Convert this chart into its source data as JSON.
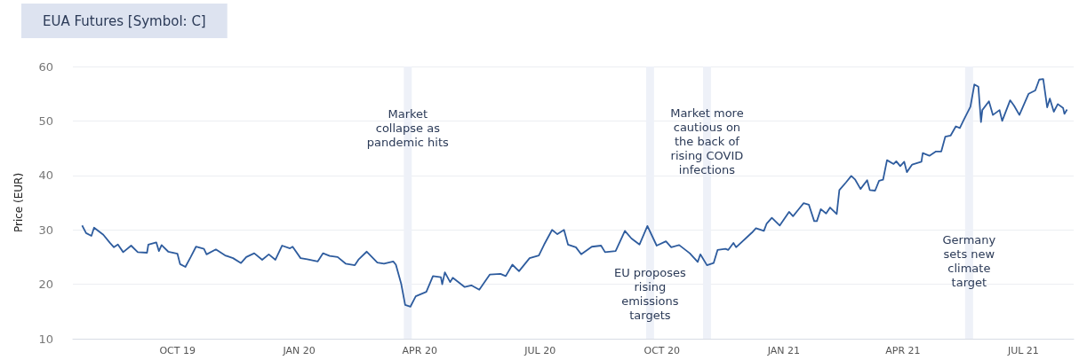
{
  "chart_data": {
    "type": "line",
    "title": "EUA Futures [Symbol: C]",
    "ylabel": "Price (EUR)",
    "x": [
      "2019-07-21",
      "2019-07-24",
      "2019-07-28",
      "2019-07-30",
      "2019-08-06",
      "2019-08-11",
      "2019-08-14",
      "2019-08-17",
      "2019-08-21",
      "2019-08-27",
      "2019-09-01",
      "2019-09-08",
      "2019-09-09",
      "2019-09-15",
      "2019-09-17",
      "2019-09-19",
      "2019-09-24",
      "2019-10-01",
      "2019-10-03",
      "2019-10-07",
      "2019-10-11",
      "2019-10-15",
      "2019-10-21",
      "2019-10-23",
      "2019-10-30",
      "2019-11-06",
      "2019-11-12",
      "2019-11-18",
      "2019-11-22",
      "2019-11-28",
      "2019-12-04",
      "2019-12-09",
      "2019-12-14",
      "2019-12-19",
      "2019-12-25",
      "2019-12-27",
      "2020-01-02",
      "2020-01-07",
      "2020-01-15",
      "2020-01-19",
      "2020-01-24",
      "2020-01-30",
      "2020-02-05",
      "2020-02-12",
      "2020-02-15",
      "2020-02-21",
      "2020-02-29",
      "2020-03-05",
      "2020-03-12",
      "2020-03-14",
      "2020-03-18",
      "2020-03-21",
      "2020-03-25",
      "2020-03-29",
      "2020-04-06",
      "2020-04-11",
      "2020-04-17",
      "2020-04-18",
      "2020-04-20",
      "2020-04-24",
      "2020-04-26",
      "2020-05-05",
      "2020-05-10",
      "2020-05-16",
      "2020-05-24",
      "2020-06-01",
      "2020-06-05",
      "2020-06-10",
      "2020-06-15",
      "2020-06-23",
      "2020-06-30",
      "2020-07-04",
      "2020-07-10",
      "2020-07-14",
      "2020-07-19",
      "2020-07-22",
      "2020-07-28",
      "2020-08-01",
      "2020-08-09",
      "2020-08-16",
      "2020-08-19",
      "2020-08-27",
      "2020-09-03",
      "2020-09-08",
      "2020-09-14",
      "2020-09-20",
      "2020-09-27",
      "2020-10-04",
      "2020-10-08",
      "2020-10-14",
      "2020-10-22",
      "2020-10-28",
      "2020-10-30",
      "2020-11-04",
      "2020-11-09",
      "2020-11-12",
      "2020-11-18",
      "2020-11-20",
      "2020-11-24",
      "2020-11-26",
      "2020-12-08",
      "2020-12-11",
      "2020-12-17",
      "2020-12-19",
      "2020-12-23",
      "2020-12-29",
      "2021-01-05",
      "2021-01-08",
      "2021-01-12",
      "2021-01-16",
      "2021-01-20",
      "2021-01-24",
      "2021-01-26",
      "2021-01-29",
      "2021-02-02",
      "2021-02-05",
      "2021-02-10",
      "2021-02-12",
      "2021-02-17",
      "2021-02-21",
      "2021-02-24",
      "2021-02-28",
      "2021-03-05",
      "2021-03-07",
      "2021-03-11",
      "2021-03-14",
      "2021-03-17",
      "2021-03-20",
      "2021-03-25",
      "2021-03-27",
      "2021-03-30",
      "2021-04-02",
      "2021-04-04",
      "2021-04-08",
      "2021-04-15",
      "2021-04-16",
      "2021-04-21",
      "2021-04-26",
      "2021-04-30",
      "2021-05-03",
      "2021-05-07",
      "2021-05-11",
      "2021-05-14",
      "2021-05-17",
      "2021-05-22",
      "2021-05-25",
      "2021-05-28",
      "2021-05-30",
      "2021-05-31",
      "2021-06-05",
      "2021-06-08",
      "2021-06-13",
      "2021-06-15",
      "2021-06-21",
      "2021-06-24",
      "2021-06-28",
      "2021-07-05",
      "2021-07-10",
      "2021-07-13",
      "2021-07-16",
      "2021-07-19",
      "2021-07-21",
      "2021-07-24",
      "2021-07-27",
      "2021-07-31",
      "2021-08-01",
      "2021-08-03"
    ],
    "series": [
      {
        "color": "#2e5c9e",
        "values": [
          30.8,
          29.4,
          28.9,
          30.4,
          29.1,
          27.6,
          26.8,
          27.3,
          25.9,
          27.1,
          25.9,
          25.8,
          27.3,
          27.7,
          26.1,
          27.2,
          26.0,
          25.6,
          23.7,
          23.2,
          25.0,
          26.9,
          26.5,
          25.5,
          26.4,
          25.3,
          24.8,
          23.9,
          25.0,
          25.7,
          24.5,
          25.5,
          24.5,
          27.1,
          26.6,
          26.9,
          24.8,
          24.6,
          24.2,
          25.7,
          25.2,
          25.0,
          23.8,
          23.5,
          24.6,
          26.0,
          24.0,
          23.8,
          24.2,
          23.6,
          20.1,
          16.2,
          15.9,
          17.8,
          18.6,
          21.5,
          21.3,
          20.0,
          22.2,
          20.4,
          21.2,
          19.5,
          19.8,
          19.0,
          21.8,
          21.9,
          21.5,
          23.6,
          22.4,
          24.8,
          25.3,
          27.3,
          30.0,
          29.2,
          30.0,
          27.3,
          26.8,
          25.5,
          26.9,
          27.1,
          25.9,
          26.1,
          29.8,
          28.4,
          27.3,
          30.7,
          27.1,
          27.9,
          26.8,
          27.2,
          25.7,
          24.1,
          25.5,
          23.5,
          23.9,
          26.3,
          26.5,
          26.3,
          27.6,
          26.8,
          29.5,
          30.3,
          29.8,
          31.1,
          32.2,
          30.8,
          33.3,
          32.5,
          33.7,
          34.9,
          34.6,
          31.6,
          31.6,
          33.8,
          33.0,
          34.1,
          32.9,
          37.3,
          38.7,
          39.9,
          39.2,
          37.5,
          39.1,
          37.3,
          37.2,
          39.0,
          39.2,
          42.8,
          42.1,
          42.6,
          41.7,
          42.5,
          40.6,
          42.0,
          42.5,
          44.1,
          43.6,
          44.4,
          44.4,
          47.1,
          47.3,
          49.0,
          48.7,
          50.2,
          52.6,
          56.7,
          56.3,
          49.8,
          52.0,
          53.6,
          51.1,
          52.0,
          50.0,
          53.8,
          52.8,
          51.1,
          55.0,
          55.6,
          57.6,
          57.7,
          52.5,
          54.1,
          51.7,
          53.1,
          52.4,
          51.3,
          52.1
        ]
      }
    ],
    "xlim": [
      "2019-07-14",
      "2021-08-08"
    ],
    "xticks": [
      {
        "value": "2019-10-01",
        "label": "OCT 19"
      },
      {
        "value": "2020-01-01",
        "label": "JAN 20"
      },
      {
        "value": "2020-04-01",
        "label": "APR 20"
      },
      {
        "value": "2020-07-01",
        "label": "JUL 20"
      },
      {
        "value": "2020-10-01",
        "label": "OCT 20"
      },
      {
        "value": "2021-01-01",
        "label": "JAN 21"
      },
      {
        "value": "2021-04-01",
        "label": "APR 21"
      },
      {
        "value": "2021-07-01",
        "label": "JUL 21"
      }
    ],
    "ylim": [
      10,
      60
    ],
    "yticks": [
      10,
      20,
      30,
      40,
      50,
      60
    ],
    "grid": "y",
    "marker": "none",
    "line_style": "solid",
    "bands": [
      {
        "axis": "x",
        "from": "2020-03-20",
        "to": "2020-03-26",
        "color": "#eef1f8"
      },
      {
        "axis": "x",
        "from": "2020-09-19",
        "to": "2020-09-25",
        "color": "#eef1f8"
      },
      {
        "axis": "x",
        "from": "2020-11-01",
        "to": "2020-11-07",
        "color": "#eef1f8"
      },
      {
        "axis": "x",
        "from": "2021-05-18",
        "to": "2021-05-24",
        "color": "#eef1f8"
      }
    ],
    "annotations": [
      {
        "text": "Market\ncollapse as\npandemic hits",
        "x": "2020-03-23",
        "y": 48.7
      },
      {
        "text": "EU proposes\nrising\nemissions\ntargets",
        "x": "2020-09-22",
        "y": 18.2
      },
      {
        "text": "Market more\ncautious on\nthe back of\nrising COVID\ninfections",
        "x": "2020-11-04",
        "y": 46.3
      },
      {
        "text": "Germany\nsets new\nclimate\ntarget",
        "x": "2021-05-21",
        "y": 24.3
      }
    ]
  }
}
